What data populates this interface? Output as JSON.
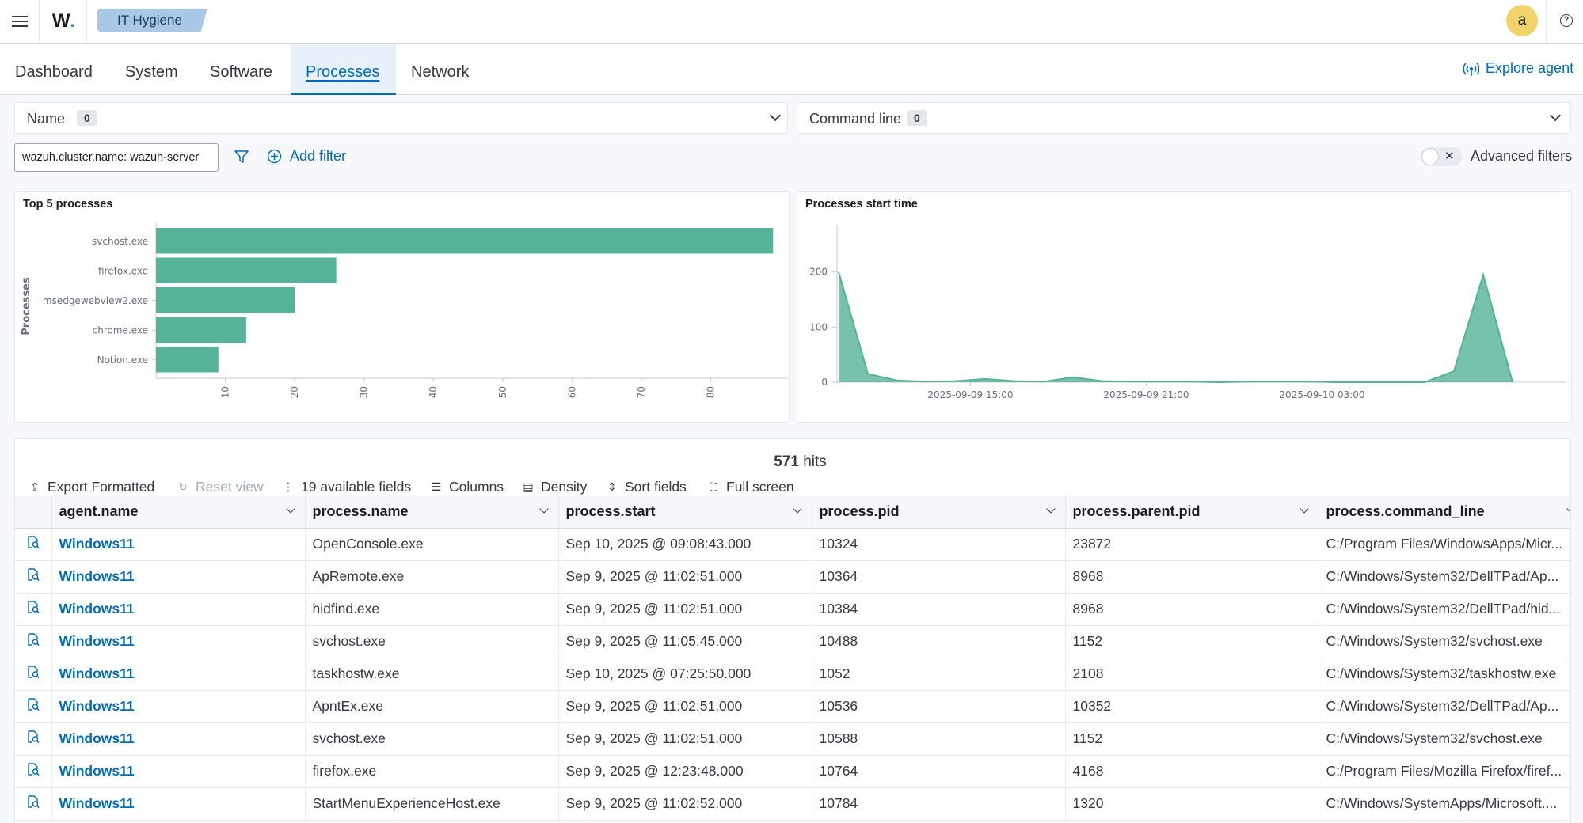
{
  "header": {
    "logo": "W",
    "logo_dot": ".",
    "breadcrumb": "IT Hygiene",
    "avatar_letter": "a",
    "help": "?"
  },
  "tabs": [
    {
      "label": "Dashboard",
      "active": false
    },
    {
      "label": "System",
      "active": false
    },
    {
      "label": "Software",
      "active": false
    },
    {
      "label": "Processes",
      "active": true
    },
    {
      "label": "Network",
      "active": false
    }
  ],
  "explore_agent": "Explore agent",
  "selects": {
    "name": {
      "label": "Name",
      "count": "0"
    },
    "command_line": {
      "label": "Command line",
      "count": "0"
    }
  },
  "filters": {
    "pill": "wazuh.cluster.name: wazuh-server",
    "add_filter": "Add filter",
    "advanced_filters": "Advanced filters"
  },
  "chart_data": [
    {
      "type": "bar",
      "orientation": "horizontal",
      "title": "Top 5 processes",
      "ylabel": "Processes",
      "xlabel": "",
      "categories": [
        "svchost.exe",
        "firefox.exe",
        "msedgewebview2.exe",
        "chrome.exe",
        "Notion.exe"
      ],
      "values": [
        89,
        26,
        20,
        13,
        9
      ],
      "xlim": [
        0,
        90
      ],
      "xticks": [
        10,
        20,
        30,
        40,
        50,
        60,
        70,
        80
      ],
      "color": "#54b399"
    },
    {
      "type": "area",
      "title": "Processes start time",
      "xlabel": "",
      "ylabel": "",
      "x": [
        "2025-09-09 10:30",
        "2025-09-09 11:30",
        "2025-09-09 12:30",
        "2025-09-09 13:30",
        "2025-09-09 14:30",
        "2025-09-09 15:30",
        "2025-09-09 16:30",
        "2025-09-09 17:30",
        "2025-09-09 18:30",
        "2025-09-09 19:30",
        "2025-09-09 20:30",
        "2025-09-09 21:30",
        "2025-09-09 22:30",
        "2025-09-09 23:30",
        "2025-09-10 00:30",
        "2025-09-10 01:30",
        "2025-09-10 02:30",
        "2025-09-10 03:30",
        "2025-09-10 04:30",
        "2025-09-10 05:30",
        "2025-09-10 06:30",
        "2025-09-10 07:30",
        "2025-09-10 08:30",
        "2025-09-10 09:30"
      ],
      "values": [
        200,
        15,
        3,
        1,
        2,
        6,
        2,
        1,
        9,
        2,
        1,
        1,
        1,
        0,
        1,
        1,
        1,
        0,
        0,
        0,
        0,
        20,
        195,
        0
      ],
      "ylim": [
        0,
        280
      ],
      "yticks": [
        0,
        100,
        200
      ],
      "xtick_labels": [
        "2025-09-09 15:00",
        "2025-09-09 21:00",
        "2025-09-10 03:00"
      ],
      "color": "#54b399"
    }
  ],
  "table": {
    "hits_count": "571",
    "hits_label": "hits",
    "toolbar": {
      "export": "Export Formatted",
      "reset": "Reset view",
      "fields": "19 available fields",
      "columns": "Columns",
      "density": "Density",
      "sort": "Sort fields",
      "fullscreen": "Full screen"
    },
    "columns": [
      "agent.name",
      "process.name",
      "process.start",
      "process.pid",
      "process.parent.pid",
      "process.command_line"
    ],
    "rows": [
      {
        "agent": "Windows11",
        "name": "OpenConsole.exe",
        "start": "Sep 10, 2025 @ 09:08:43.000",
        "pid": "10324",
        "ppid": "23872",
        "cmd": "C:/Program Files/WindowsApps/Micr..."
      },
      {
        "agent": "Windows11",
        "name": "ApRemote.exe",
        "start": "Sep 9, 2025 @ 11:02:51.000",
        "pid": "10364",
        "ppid": "8968",
        "cmd": "C:/Windows/System32/DellTPad/Ap..."
      },
      {
        "agent": "Windows11",
        "name": "hidfind.exe",
        "start": "Sep 9, 2025 @ 11:02:51.000",
        "pid": "10384",
        "ppid": "8968",
        "cmd": "C:/Windows/System32/DellTPad/hid..."
      },
      {
        "agent": "Windows11",
        "name": "svchost.exe",
        "start": "Sep 9, 2025 @ 11:05:45.000",
        "pid": "10488",
        "ppid": "1152",
        "cmd": "C:/Windows/System32/svchost.exe"
      },
      {
        "agent": "Windows11",
        "name": "taskhostw.exe",
        "start": "Sep 10, 2025 @ 07:25:50.000",
        "pid": "1052",
        "ppid": "2108",
        "cmd": "C:/Windows/System32/taskhostw.exe"
      },
      {
        "agent": "Windows11",
        "name": "ApntEx.exe",
        "start": "Sep 9, 2025 @ 11:02:51.000",
        "pid": "10536",
        "ppid": "10352",
        "cmd": "C:/Windows/System32/DellTPad/Ap..."
      },
      {
        "agent": "Windows11",
        "name": "svchost.exe",
        "start": "Sep 9, 2025 @ 11:02:51.000",
        "pid": "10588",
        "ppid": "1152",
        "cmd": "C:/Windows/System32/svchost.exe"
      },
      {
        "agent": "Windows11",
        "name": "firefox.exe",
        "start": "Sep 9, 2025 @ 12:23:48.000",
        "pid": "10764",
        "ppid": "4168",
        "cmd": "C:/Program Files/Mozilla Firefox/firef..."
      },
      {
        "agent": "Windows11",
        "name": "StartMenuExperienceHost.exe",
        "start": "Sep 9, 2025 @ 11:02:52.000",
        "pid": "10784",
        "ppid": "1320",
        "cmd": "C:/Windows/SystemApps/Microsoft...."
      }
    ]
  },
  "icons": {
    "menu": "hamburger-icon",
    "explore": "broadcast-icon",
    "filter": "funnel-icon",
    "add": "plus-circle-icon",
    "inspect": "inspect-doc-icon"
  },
  "colors": {
    "accent": "#006bb8",
    "chart": "#54b399",
    "breadcrumb_bg": "#a8c8e6",
    "avatar_bg": "#f2d36a"
  }
}
